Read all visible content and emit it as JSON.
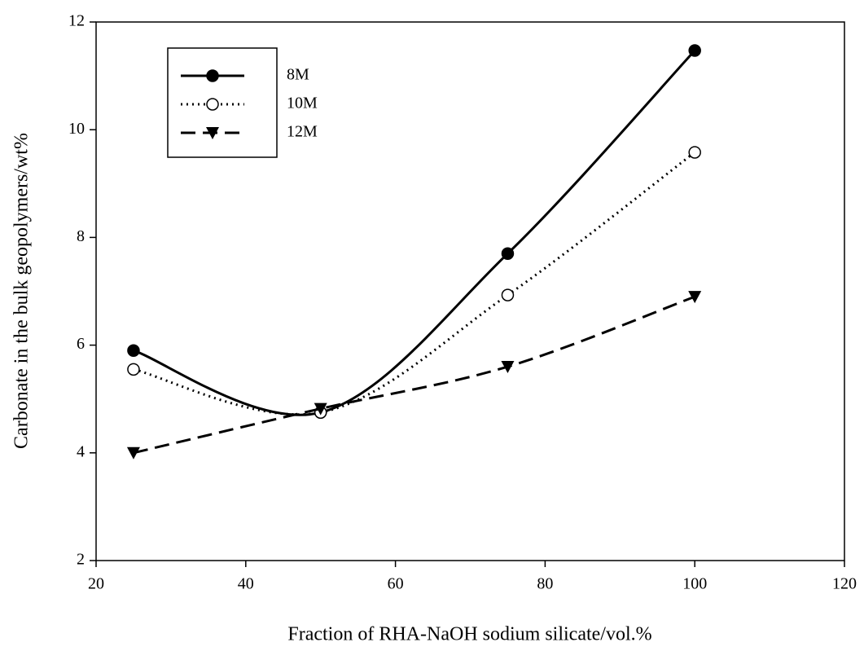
{
  "chart_data": {
    "type": "line",
    "xlabel": "Fraction of RHA-NaOH sodium silicate/vol.%",
    "ylabel": "Carbonate in the bulk geopolymers/wt%",
    "x": [
      25,
      50,
      75,
      100
    ],
    "series": [
      {
        "name": "8M",
        "color": "#000000",
        "dash": "solid",
        "marker": "circle-filled",
        "values": [
          5.9,
          4.75,
          7.7,
          11.47
        ]
      },
      {
        "name": "10M",
        "color": "#000000",
        "dash": "dotted",
        "marker": "circle-open",
        "values": [
          5.55,
          4.75,
          6.93,
          9.58
        ]
      },
      {
        "name": "12M",
        "color": "#000000",
        "dash": "dashed",
        "marker": "triangle-down",
        "values": [
          4.0,
          4.82,
          5.6,
          6.9
        ]
      }
    ],
    "xlim": [
      20,
      120
    ],
    "xticks": [
      20,
      40,
      60,
      80,
      100,
      120
    ],
    "ylim": [
      2,
      12
    ],
    "yticks": [
      2,
      4,
      6,
      8,
      10,
      12
    ],
    "legend": "upper left",
    "smooth": true
  }
}
